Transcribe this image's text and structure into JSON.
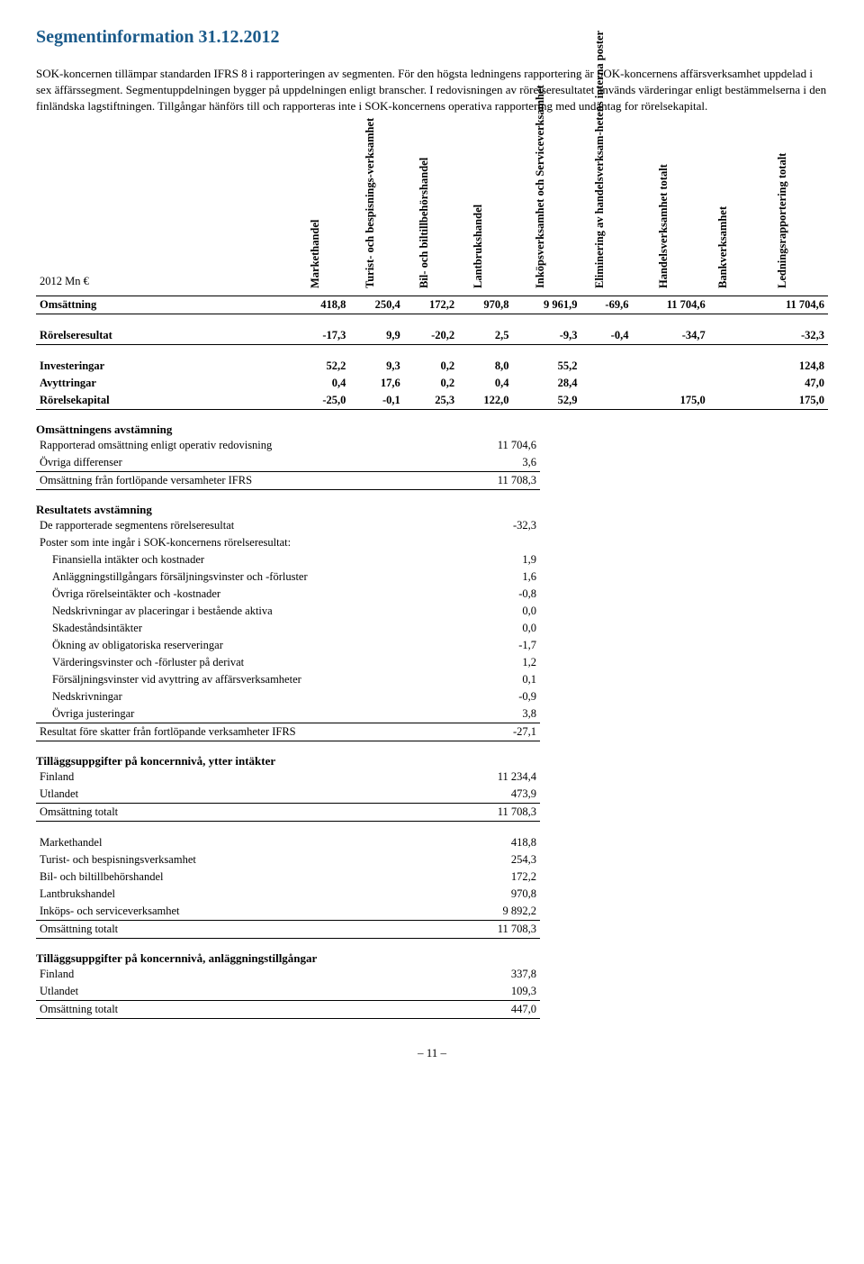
{
  "title": "Segmentinformation 31.12.2012",
  "intro": "SOK-koncernen tillämpar standarden IFRS 8 i rapporteringen av segmenten. För den högsta ledningens rapportering är SOK-koncernens affärsverksamhet uppdelad i sex äffärssegment. Segmentuppdelningen bygger på uppdelningen enligt branscher. I redovisningen av rörelseresultatet används värderingar enligt bestämmelserna i den finländska lagstiftningen. Tillgångar hänförs till och rapporteras inte i SOK-koncernens operativa rapportering med undantag for rörelsekapital.",
  "yearLabel": "2012 Mn €",
  "cols": [
    "Markethandel",
    "Turist- och bespisnings-verksamhet",
    "Bil- och biltillbehörshandel",
    "Lantbrukshandel",
    "Inköpsverksamhet och Serviceverksamhet",
    "Eliminering av handelsverksam-hetens interna poster",
    "Handelsverksamhet totalt",
    "Bankverksamhet",
    "Ledningsrapportering totalt"
  ],
  "main": [
    {
      "label": "Omsättning",
      "vals": [
        "418,8",
        "250,4",
        "172,2",
        "970,8",
        "9 961,9",
        "-69,6",
        "11 704,6",
        "",
        "11 704,6"
      ],
      "bold": true,
      "bt": true,
      "bb": true
    },
    {
      "label": "Rörelseresultat",
      "vals": [
        "-17,3",
        "9,9",
        "-20,2",
        "2,5",
        "-9,3",
        "-0,4",
        "-34,7",
        "",
        "-32,3"
      ],
      "bold": true,
      "bb": true,
      "spaceAbove": true
    },
    {
      "label": "Investeringar",
      "vals": [
        "52,2",
        "9,3",
        "0,2",
        "8,0",
        "55,2",
        "",
        "",
        "",
        "124,8"
      ],
      "bold": true,
      "spaceAbove": true
    },
    {
      "label": "Avyttringar",
      "vals": [
        "0,4",
        "17,6",
        "0,2",
        "0,4",
        "28,4",
        "",
        "",
        "",
        "47,0"
      ],
      "bold": true
    },
    {
      "label": "Rörelsekapital",
      "vals": [
        "-25,0",
        "-0,1",
        "25,3",
        "122,0",
        "52,9",
        "",
        "175,0",
        "",
        "175,0"
      ],
      "bold": true,
      "bb": true
    }
  ],
  "rec1": {
    "heading": "Omsättningens avstämning",
    "rows": [
      {
        "label": "Rapporterad omsättning enligt operativ redovisning",
        "val": "11 704,6"
      },
      {
        "label": "Övriga differenser",
        "val": "3,6"
      },
      {
        "label": "Omsättning från fortlöpande versamheter IFRS",
        "val": "11 708,3",
        "bt": true,
        "bb": true
      }
    ]
  },
  "rec2": {
    "heading": "Resultatets avstämning",
    "rows": [
      {
        "label": "De rapporterade segmentens rörelseresultat",
        "val": "-32,3"
      },
      {
        "label": "Poster som inte ingår i SOK-koncernens rörelseresultat:",
        "val": ""
      },
      {
        "label": "Finansiella intäkter och kostnader",
        "val": "1,9",
        "indent": true
      },
      {
        "label": "Anläggningstillgångars försäljningsvinster och -förluster",
        "val": "1,6",
        "indent": true
      },
      {
        "label": "Övriga rörelseintäkter och -kostnader",
        "val": "-0,8",
        "indent": true
      },
      {
        "label": "Nedskrivningar av placeringar i bestående aktiva",
        "val": "0,0",
        "indent": true
      },
      {
        "label": "Skadeståndsintäkter",
        "val": "0,0",
        "indent": true
      },
      {
        "label": "Ökning av obligatoriska reserveringar",
        "val": "-1,7",
        "indent": true
      },
      {
        "label": "Värderingsvinster och -förluster på derivat",
        "val": "1,2",
        "indent": true
      },
      {
        "label": "Försäljningsvinster vid avyttring av affärsverksamheter",
        "val": "0,1",
        "indent": true
      },
      {
        "label": "Nedskrivningar",
        "val": "-0,9",
        "indent": true
      },
      {
        "label": "Övriga justeringar",
        "val": "3,8",
        "indent": true
      },
      {
        "label": "Resultat före skatter från fortlöpande verksamheter IFRS",
        "val": "-27,1",
        "bt": true,
        "bb": true
      }
    ]
  },
  "addl1": {
    "heading": "Tilläggsuppgifter på koncernnivå, ytter intäkter",
    "rows": [
      {
        "label": "Finland",
        "val": "11 234,4"
      },
      {
        "label": "Utlandet",
        "val": "473,9"
      },
      {
        "label": "Omsättning totalt",
        "val": "11 708,3",
        "bt": true,
        "bb": true
      }
    ]
  },
  "addl2": {
    "rows": [
      {
        "label": "Markethandel",
        "val": "418,8"
      },
      {
        "label": "Turist- och bespisningsverksamhet",
        "val": "254,3"
      },
      {
        "label": "Bil- och biltillbehörshandel",
        "val": "172,2"
      },
      {
        "label": "Lantbrukshandel",
        "val": "970,8"
      },
      {
        "label": "Inköps- och serviceverksamhet",
        "val": "9 892,2"
      },
      {
        "label": "Omsättning totalt",
        "val": "11 708,3",
        "bt": true,
        "bb": true
      }
    ]
  },
  "addl3": {
    "heading": "Tilläggsuppgifter på koncernnivå, anläggningstillgångar",
    "rows": [
      {
        "label": "Finland",
        "val": "337,8"
      },
      {
        "label": "Utlandet",
        "val": "109,3"
      },
      {
        "label": "Omsättning totalt",
        "val": "447,0",
        "bt": true,
        "bb": true
      }
    ]
  },
  "pageNum": "– 11 –"
}
